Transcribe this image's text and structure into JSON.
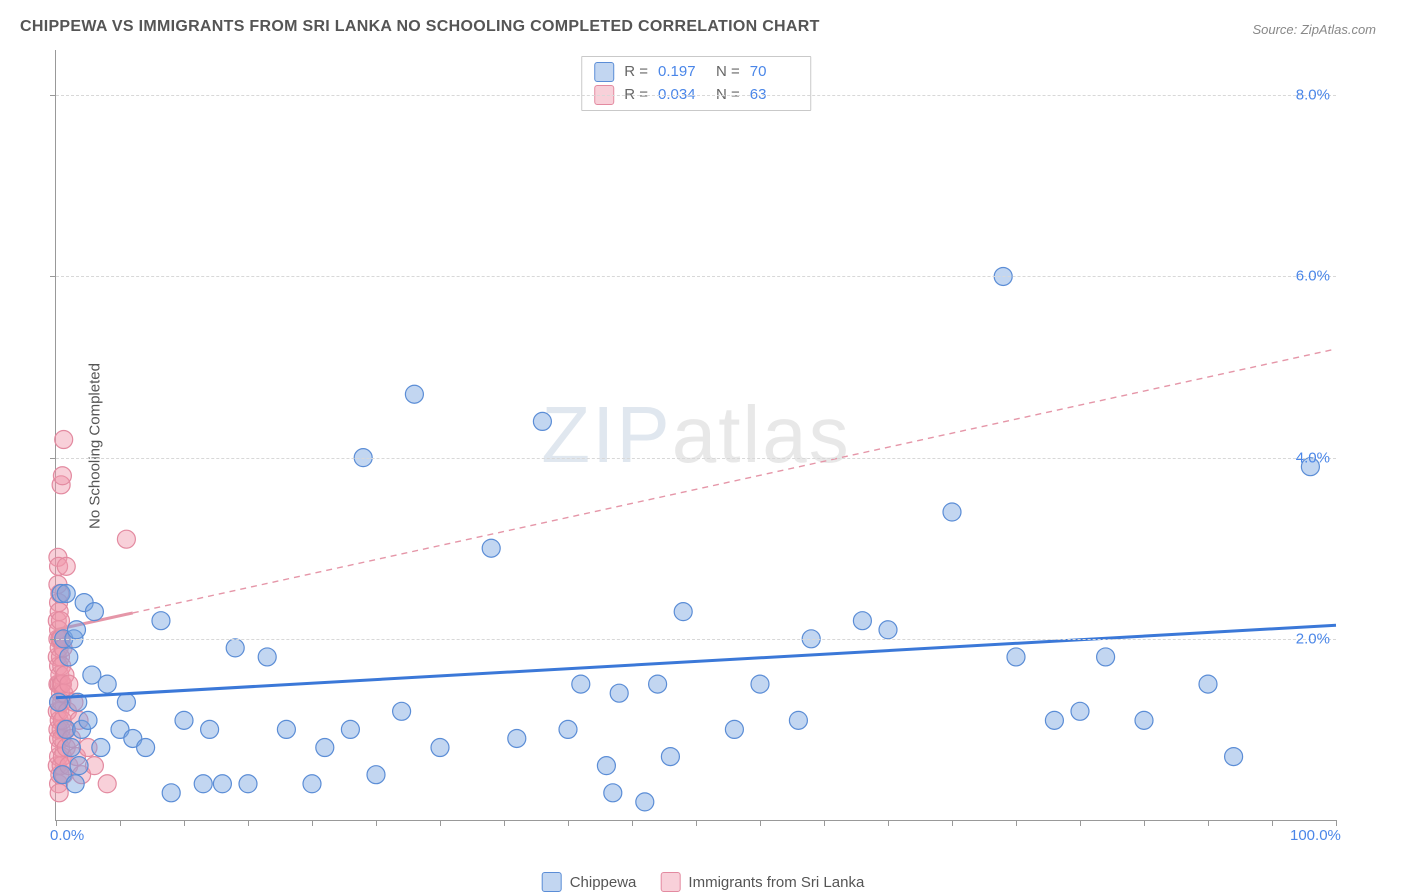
{
  "title": "CHIPPEWA VS IMMIGRANTS FROM SRI LANKA NO SCHOOLING COMPLETED CORRELATION CHART",
  "source": "Source: ZipAtlas.com",
  "ylabel": "No Schooling Completed",
  "watermark_zip": "ZIP",
  "watermark_atlas": "atlas",
  "chart": {
    "type": "scatter",
    "xlim": [
      0,
      100
    ],
    "ylim": [
      0,
      8.5
    ],
    "x_ticks": [
      0,
      5,
      10,
      15,
      20,
      25,
      30,
      35,
      40,
      45,
      50,
      55,
      60,
      65,
      70,
      75,
      80,
      85,
      90,
      95,
      100
    ],
    "x_labels_shown": {
      "0": "0.0%",
      "100": "100.0%"
    },
    "y_ticks": [
      2,
      4,
      6,
      8
    ],
    "y_label_format": "{v}.0%",
    "grid_color": "#d8d8d8",
    "background_color": "#ffffff",
    "axis_color": "#999999",
    "marker_radius": 9,
    "marker_stroke_width": 1.2,
    "series": [
      {
        "name": "Chippewa",
        "fill": "rgba(120,165,225,0.45)",
        "stroke": "#5b8dd6",
        "R": "0.197",
        "N": "70",
        "trend": {
          "x1": 0,
          "y1": 1.35,
          "x2": 100,
          "y2": 2.15,
          "dash": "0",
          "width": 3,
          "color": "#3b78d8"
        },
        "points": [
          [
            0.2,
            1.3
          ],
          [
            0.4,
            2.5
          ],
          [
            0.5,
            0.5
          ],
          [
            0.6,
            2.0
          ],
          [
            0.8,
            1.0
          ],
          [
            0.8,
            2.5
          ],
          [
            1.0,
            1.8
          ],
          [
            1.2,
            0.8
          ],
          [
            1.4,
            2.0
          ],
          [
            1.5,
            0.4
          ],
          [
            1.6,
            2.1
          ],
          [
            1.7,
            1.3
          ],
          [
            1.8,
            0.6
          ],
          [
            2.0,
            1.0
          ],
          [
            2.2,
            2.4
          ],
          [
            2.5,
            1.1
          ],
          [
            2.8,
            1.6
          ],
          [
            3.0,
            2.3
          ],
          [
            3.5,
            0.8
          ],
          [
            4.0,
            1.5
          ],
          [
            5.0,
            1.0
          ],
          [
            5.5,
            1.3
          ],
          [
            6.0,
            0.9
          ],
          [
            7.0,
            0.8
          ],
          [
            8.2,
            2.2
          ],
          [
            9.0,
            0.3
          ],
          [
            10.0,
            1.1
          ],
          [
            11.5,
            0.4
          ],
          [
            12.0,
            1.0
          ],
          [
            13.0,
            0.4
          ],
          [
            14.0,
            1.9
          ],
          [
            15.0,
            0.4
          ],
          [
            16.5,
            1.8
          ],
          [
            18.0,
            1.0
          ],
          [
            20.0,
            0.4
          ],
          [
            21.0,
            0.8
          ],
          [
            23.0,
            1.0
          ],
          [
            24.0,
            4.0
          ],
          [
            25.0,
            0.5
          ],
          [
            27.0,
            1.2
          ],
          [
            28.0,
            4.7
          ],
          [
            30.0,
            0.8
          ],
          [
            34.0,
            3.0
          ],
          [
            36.0,
            0.9
          ],
          [
            38.0,
            4.4
          ],
          [
            40.0,
            1.0
          ],
          [
            41.0,
            1.5
          ],
          [
            43.0,
            0.6
          ],
          [
            43.5,
            0.3
          ],
          [
            44.0,
            1.4
          ],
          [
            46.0,
            0.2
          ],
          [
            47.0,
            1.5
          ],
          [
            48.0,
            0.7
          ],
          [
            49.0,
            2.3
          ],
          [
            53.0,
            1.0
          ],
          [
            55.0,
            1.5
          ],
          [
            58.0,
            1.1
          ],
          [
            59.0,
            2.0
          ],
          [
            63.0,
            2.2
          ],
          [
            65.0,
            2.1
          ],
          [
            70.0,
            3.4
          ],
          [
            74.0,
            6.0
          ],
          [
            75.0,
            1.8
          ],
          [
            78.0,
            1.1
          ],
          [
            80.0,
            1.2
          ],
          [
            82.0,
            1.8
          ],
          [
            85.0,
            1.1
          ],
          [
            90.0,
            1.5
          ],
          [
            92.0,
            0.7
          ],
          [
            98.0,
            3.9
          ]
        ]
      },
      {
        "name": "Immigrants from Sri Lanka",
        "fill": "rgba(240,150,170,0.45)",
        "stroke": "#e38aa0",
        "R": "0.034",
        "N": "63",
        "trend": {
          "x1": 0,
          "y1": 2.1,
          "x2": 100,
          "y2": 5.2,
          "dash": "6,5",
          "width": 1.4,
          "color": "#e596a8"
        },
        "trend_solid_to_x": 6,
        "points": [
          [
            0.1,
            0.6
          ],
          [
            0.1,
            1.2
          ],
          [
            0.1,
            1.8
          ],
          [
            0.1,
            2.2
          ],
          [
            0.15,
            1.0
          ],
          [
            0.15,
            1.5
          ],
          [
            0.15,
            2.0
          ],
          [
            0.15,
            2.6
          ],
          [
            0.15,
            2.9
          ],
          [
            0.2,
            0.4
          ],
          [
            0.2,
            0.7
          ],
          [
            0.2,
            0.9
          ],
          [
            0.2,
            1.3
          ],
          [
            0.2,
            1.7
          ],
          [
            0.2,
            2.1
          ],
          [
            0.2,
            2.4
          ],
          [
            0.2,
            2.8
          ],
          [
            0.25,
            0.3
          ],
          [
            0.25,
            1.1
          ],
          [
            0.25,
            1.5
          ],
          [
            0.25,
            1.9
          ],
          [
            0.25,
            2.3
          ],
          [
            0.3,
            0.5
          ],
          [
            0.3,
            1.2
          ],
          [
            0.3,
            1.6
          ],
          [
            0.3,
            2.0
          ],
          [
            0.3,
            2.5
          ],
          [
            0.35,
            0.8
          ],
          [
            0.35,
            1.4
          ],
          [
            0.35,
            1.8
          ],
          [
            0.35,
            2.2
          ],
          [
            0.4,
            0.6
          ],
          [
            0.4,
            1.0
          ],
          [
            0.4,
            1.5
          ],
          [
            0.4,
            2.0
          ],
          [
            0.4,
            3.7
          ],
          [
            0.45,
            0.9
          ],
          [
            0.45,
            1.3
          ],
          [
            0.45,
            1.7
          ],
          [
            0.5,
            0.7
          ],
          [
            0.5,
            1.1
          ],
          [
            0.5,
            1.5
          ],
          [
            0.5,
            3.8
          ],
          [
            0.55,
            1.9
          ],
          [
            0.6,
            0.5
          ],
          [
            0.6,
            1.4
          ],
          [
            0.6,
            4.2
          ],
          [
            0.7,
            1.0
          ],
          [
            0.7,
            1.6
          ],
          [
            0.8,
            0.8
          ],
          [
            0.8,
            2.8
          ],
          [
            0.9,
            1.2
          ],
          [
            1.0,
            0.6
          ],
          [
            1.0,
            1.5
          ],
          [
            1.2,
            0.9
          ],
          [
            1.4,
            1.3
          ],
          [
            1.6,
            0.7
          ],
          [
            1.8,
            1.1
          ],
          [
            2.0,
            0.5
          ],
          [
            2.5,
            0.8
          ],
          [
            3.0,
            0.6
          ],
          [
            4.0,
            0.4
          ],
          [
            5.5,
            3.1
          ]
        ]
      }
    ]
  },
  "legend": {
    "series1_label": "Chippewa",
    "series2_label": "Immigrants from Sri Lanka"
  },
  "stats_labels": {
    "R": "R =",
    "N": "N ="
  }
}
